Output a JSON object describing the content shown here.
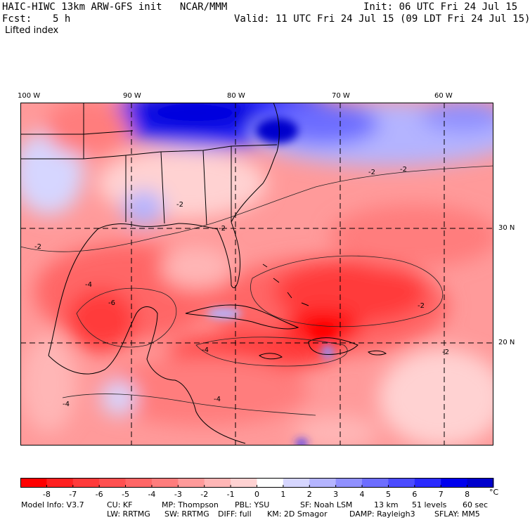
{
  "header": {
    "model_title": "HAIC-HIWC 13km ARW-GFS init   NCAR/MMM",
    "init": "Init: 06 UTC Fri 24 Jul 15",
    "fcst_label": "Fcst:",
    "fcst_value": "5 h",
    "valid": "Valid: 11 UTC Fri 24 Jul 15 (09 LDT Fri 24 Jul 15)",
    "field_name": "Lifted index"
  },
  "map": {
    "longitude_labels": [
      "100 W",
      "90 W",
      "80 W",
      "70 W",
      "60 W"
    ],
    "latitude_labels": [
      "30 N",
      "20 N"
    ],
    "contour_labels": [
      "-2",
      "-2",
      "-2",
      "-4",
      "-6",
      "-4",
      "-4",
      "-2",
      "-2",
      "-4",
      "-2",
      "-2"
    ]
  },
  "colorbar": {
    "tick_labels": [
      "-8",
      "-7",
      "-6",
      "-5",
      "-4",
      "-3",
      "-2",
      "-1",
      "0",
      "1",
      "2",
      "3",
      "4",
      "5",
      "6",
      "7",
      "8"
    ],
    "unit": "°C",
    "colors": [
      "#ff0000",
      "#ff2020",
      "#ff3a3a",
      "#ff5050",
      "#ff6666",
      "#ff7d7d",
      "#ff9a9a",
      "#ffb6b6",
      "#ffd2d2",
      "#ffffff",
      "#d6d6ff",
      "#b4b4ff",
      "#9090ff",
      "#6d6dff",
      "#4b4bff",
      "#2a2aff",
      "#0000ee",
      "#0000cc"
    ]
  },
  "footer": {
    "line1": [
      "Model Info: V3.7",
      "CU: KF",
      "MP: Thompson",
      "PBL: YSU",
      "SF: Noah LSM",
      "13 km",
      "51 levels",
      "60 sec"
    ],
    "line2": [
      "LW: RRTMG",
      "SW: RRTMG",
      "DIFF: full",
      "KM: 2D Smagor",
      "DAMP: Rayleigh3",
      "SFLAY: MM5"
    ]
  }
}
